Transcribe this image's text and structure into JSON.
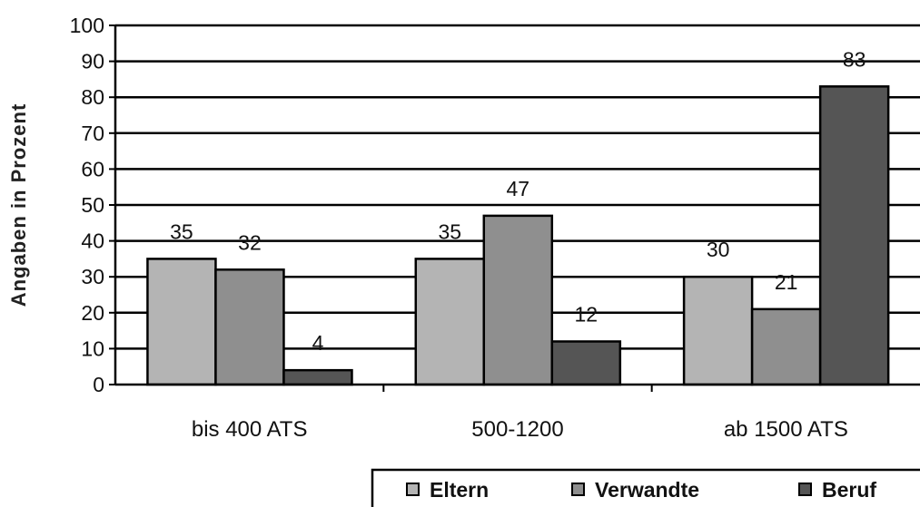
{
  "chart_data": {
    "type": "bar",
    "ylabel": "Angaben in Prozent",
    "ylim": [
      0,
      100
    ],
    "yticks": [
      "0",
      "10",
      "20",
      "30",
      "40",
      "50",
      "60",
      "70",
      "80",
      "90",
      "100"
    ],
    "grid": true,
    "legend_position": "bottom-right",
    "categories": [
      "bis 400 ATS",
      "500-1200",
      "ab 1500 ATS"
    ],
    "series": [
      {
        "name": "Eltern",
        "values": [
          35,
          35,
          30
        ],
        "labels": [
          "35",
          "35",
          "30"
        ],
        "color": "#b4b4b4"
      },
      {
        "name": "Verwandte",
        "values": [
          32,
          47,
          21
        ],
        "labels": [
          "32",
          "47",
          "21"
        ],
        "color": "#8f8f8f"
      },
      {
        "name": "Beruf",
        "values": [
          4,
          12,
          83
        ],
        "labels": [
          "4",
          "12",
          "83"
        ],
        "color": "#555555"
      }
    ]
  }
}
